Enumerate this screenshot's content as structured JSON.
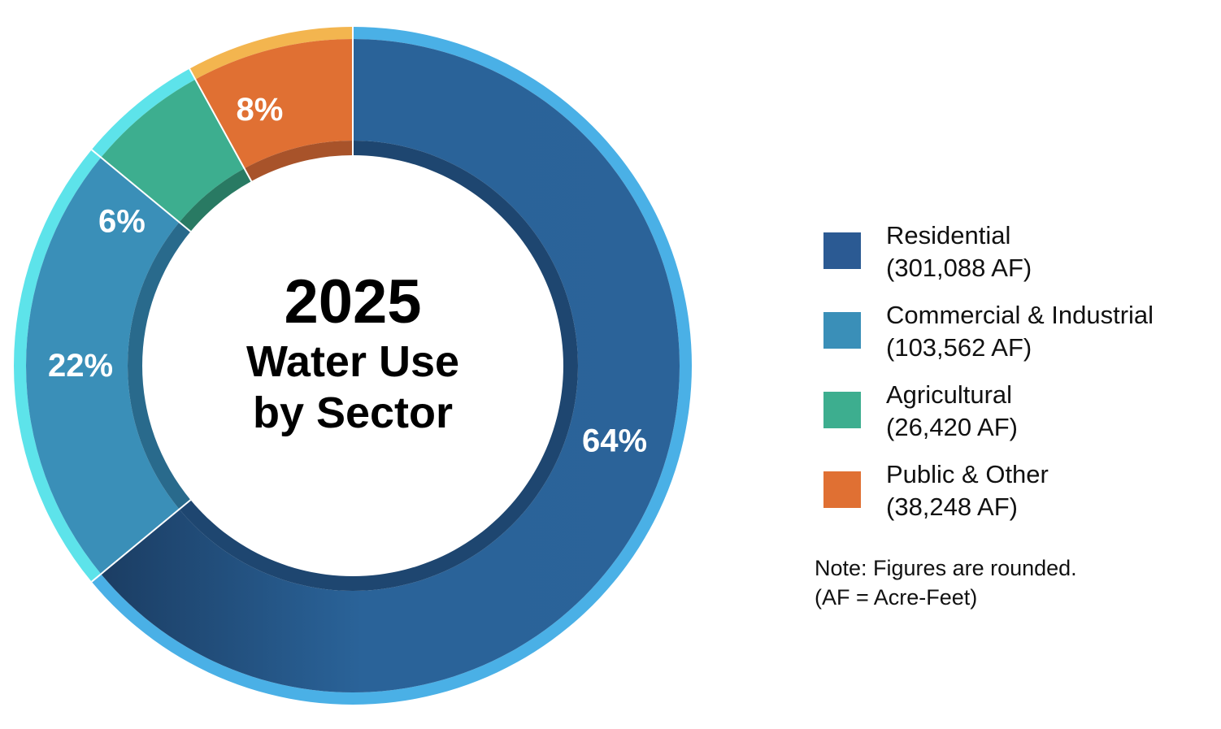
{
  "chart_data": {
    "type": "pie",
    "title": "2025",
    "subtitle_line1": "Water Use",
    "subtitle_line2": "by Sector",
    "unit": "AF",
    "slices": [
      {
        "name": "Residential",
        "percent": 64,
        "label": "64%",
        "value": 301088,
        "value_label": "(301,088 AF)",
        "color": "#2b6399",
        "dark": "#1e4670",
        "rim": "#4ab0e6"
      },
      {
        "name": "Commercial & Industrial",
        "percent": 22,
        "label": "22%",
        "value": 103562,
        "value_label": "(103,562 AF)",
        "color": "#3a8fb8",
        "dark": "#296a8c",
        "rim": "#5de3ea"
      },
      {
        "name": "Agricultural",
        "percent": 6,
        "label": "6%",
        "value": 26420,
        "value_label": "(26,420 AF)",
        "color": "#3dae8f",
        "dark": "#297a63",
        "rim": "#5de3ea"
      },
      {
        "name": "Public & Other",
        "percent": 8,
        "label": "8%",
        "value": 38248,
        "value_label": "(38,248 AF)",
        "color": "#e07033",
        "dark": "#a8532a",
        "rim": "#f3b54f"
      }
    ],
    "legend_position": "right",
    "legend_colors": [
      "#2b5a93",
      "#3a8fb8",
      "#3dae8f",
      "#e07033"
    ]
  },
  "note": {
    "line1": "Note: Figures are rounded.",
    "line2": "(AF = Acre-Feet)"
  }
}
